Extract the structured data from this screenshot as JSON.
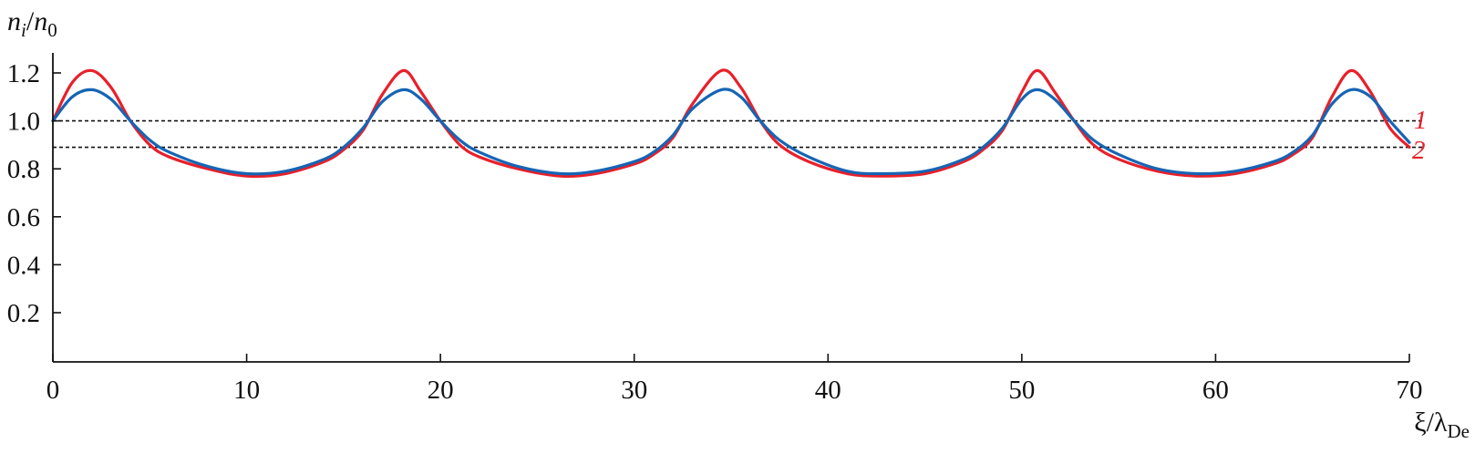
{
  "chart_data": {
    "type": "line",
    "xlabel": "ξ/λ_De",
    "xlabel_main": "ξ/λ",
    "xlabel_sub": "De",
    "ylabel": "n_i/n_0",
    "ylabel_parts": {
      "n1": "n",
      "sub1": "i",
      "slash": "/",
      "n2": "n",
      "sub2": "0"
    },
    "xlim": [
      0,
      70
    ],
    "ylim": [
      0,
      1.25
    ],
    "x_ticks": [
      0,
      10,
      20,
      30,
      40,
      50,
      60,
      70
    ],
    "x_tick_labels": [
      "0",
      "10",
      "20",
      "30",
      "40",
      "50",
      "60",
      "70"
    ],
    "y_ticks": [
      0.2,
      0.4,
      0.6,
      0.8,
      1.0,
      1.2
    ],
    "y_tick_labels": [
      "0.2",
      "0.4",
      "0.6",
      "0.8",
      "1.0",
      "1.2"
    ],
    "grid": false,
    "reference_lines": [
      {
        "y": 1.0,
        "style": "dashed",
        "color": "#111111"
      },
      {
        "y": 0.89,
        "style": "dashed",
        "color": "#111111"
      }
    ],
    "curve_labels": [
      {
        "text": "1",
        "color": "#e8202a"
      },
      {
        "text": "2",
        "color": "#e8202a"
      }
    ],
    "series": [
      {
        "color": "#e8202a",
        "x": [
          0,
          1,
          2,
          3,
          4,
          5,
          6,
          8,
          10,
          12,
          14,
          15,
          16,
          17,
          18.1,
          19,
          20,
          21,
          22,
          24,
          26.2,
          28,
          30,
          31,
          32,
          33,
          34.5,
          35.5,
          36.5,
          37.5,
          39,
          41,
          42.7,
          45,
          47,
          48,
          49,
          50,
          50.8,
          51.7,
          52.7,
          53.7,
          55,
          57,
          59,
          61,
          63,
          64,
          65,
          66,
          67,
          68,
          69,
          70
        ],
        "y": [
          1.0,
          1.16,
          1.21,
          1.14,
          1.0,
          0.9,
          0.85,
          0.8,
          0.77,
          0.78,
          0.83,
          0.88,
          0.96,
          1.11,
          1.21,
          1.12,
          1.0,
          0.9,
          0.85,
          0.8,
          0.77,
          0.78,
          0.82,
          0.86,
          0.93,
          1.07,
          1.21,
          1.14,
          1.0,
          0.9,
          0.83,
          0.78,
          0.77,
          0.78,
          0.83,
          0.88,
          0.96,
          1.12,
          1.21,
          1.12,
          1.0,
          0.9,
          0.84,
          0.79,
          0.77,
          0.78,
          0.82,
          0.86,
          0.93,
          1.1,
          1.21,
          1.12,
          0.97,
          0.89
        ]
      },
      {
        "color": "#1565b5",
        "x": [
          0,
          1,
          2,
          3,
          4,
          5,
          6,
          8,
          10,
          12,
          14,
          15,
          16,
          17,
          18.1,
          19,
          20,
          21,
          22,
          24,
          26.2,
          28,
          30,
          31,
          32,
          33,
          34.5,
          35.5,
          36.5,
          37.5,
          39,
          41,
          42.7,
          45,
          47,
          48,
          49,
          50,
          50.8,
          51.7,
          52.7,
          53.7,
          55,
          57,
          59,
          61,
          63,
          64,
          65,
          66,
          67,
          68,
          69,
          70
        ],
        "y": [
          1.0,
          1.1,
          1.13,
          1.09,
          1.0,
          0.92,
          0.87,
          0.81,
          0.78,
          0.79,
          0.84,
          0.89,
          0.97,
          1.08,
          1.13,
          1.09,
          1.0,
          0.92,
          0.87,
          0.81,
          0.78,
          0.79,
          0.83,
          0.87,
          0.94,
          1.05,
          1.13,
          1.1,
          1.0,
          0.92,
          0.85,
          0.79,
          0.78,
          0.79,
          0.84,
          0.89,
          0.97,
          1.09,
          1.13,
          1.09,
          1.0,
          0.92,
          0.86,
          0.8,
          0.78,
          0.79,
          0.83,
          0.87,
          0.94,
          1.07,
          1.13,
          1.1,
          1.0,
          0.91
        ]
      }
    ]
  }
}
